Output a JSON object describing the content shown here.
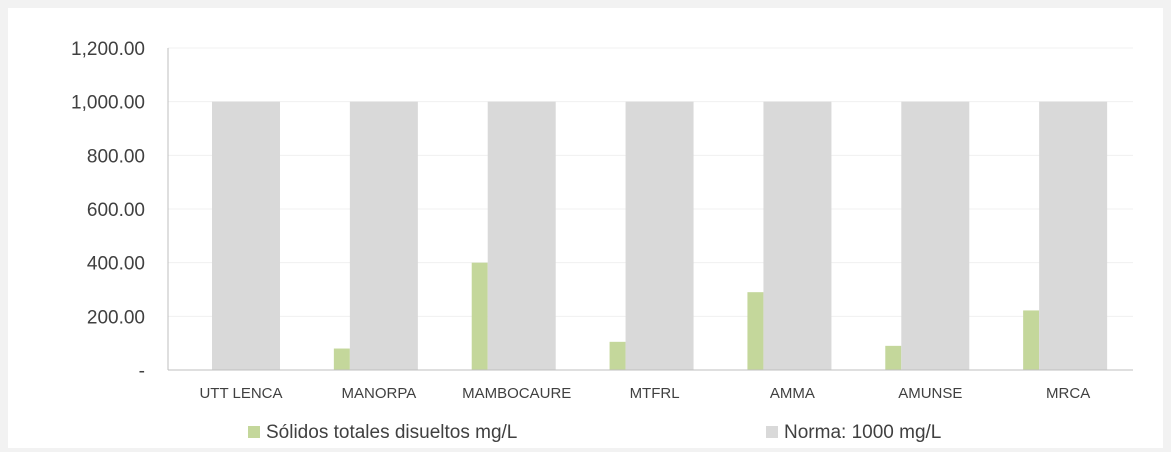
{
  "chart_data": {
    "type": "bar",
    "categories": [
      "UTT LENCA",
      "MANORPA",
      "MAMBOCAURE",
      "MTFRL",
      "AMMA",
      "AMUNSE",
      "MRCA"
    ],
    "series": [
      {
        "name": "Sólidos totales disueltos mg/L",
        "color": "#c4d79b",
        "values": [
          0,
          80,
          400,
          105,
          290,
          90,
          222
        ]
      },
      {
        "name": "Norma: 1000 mg/L",
        "color": "#d9d9d9",
        "values": [
          1000,
          1000,
          1000,
          1000,
          1000,
          1000,
          1000
        ]
      }
    ],
    "y_ticks": [
      "-",
      "200.00",
      "400.00",
      "600.00",
      "800.00",
      "1,000.00",
      "1,200.00"
    ],
    "ylim": [
      0,
      1200
    ],
    "grid": true,
    "legend": "bottom"
  }
}
